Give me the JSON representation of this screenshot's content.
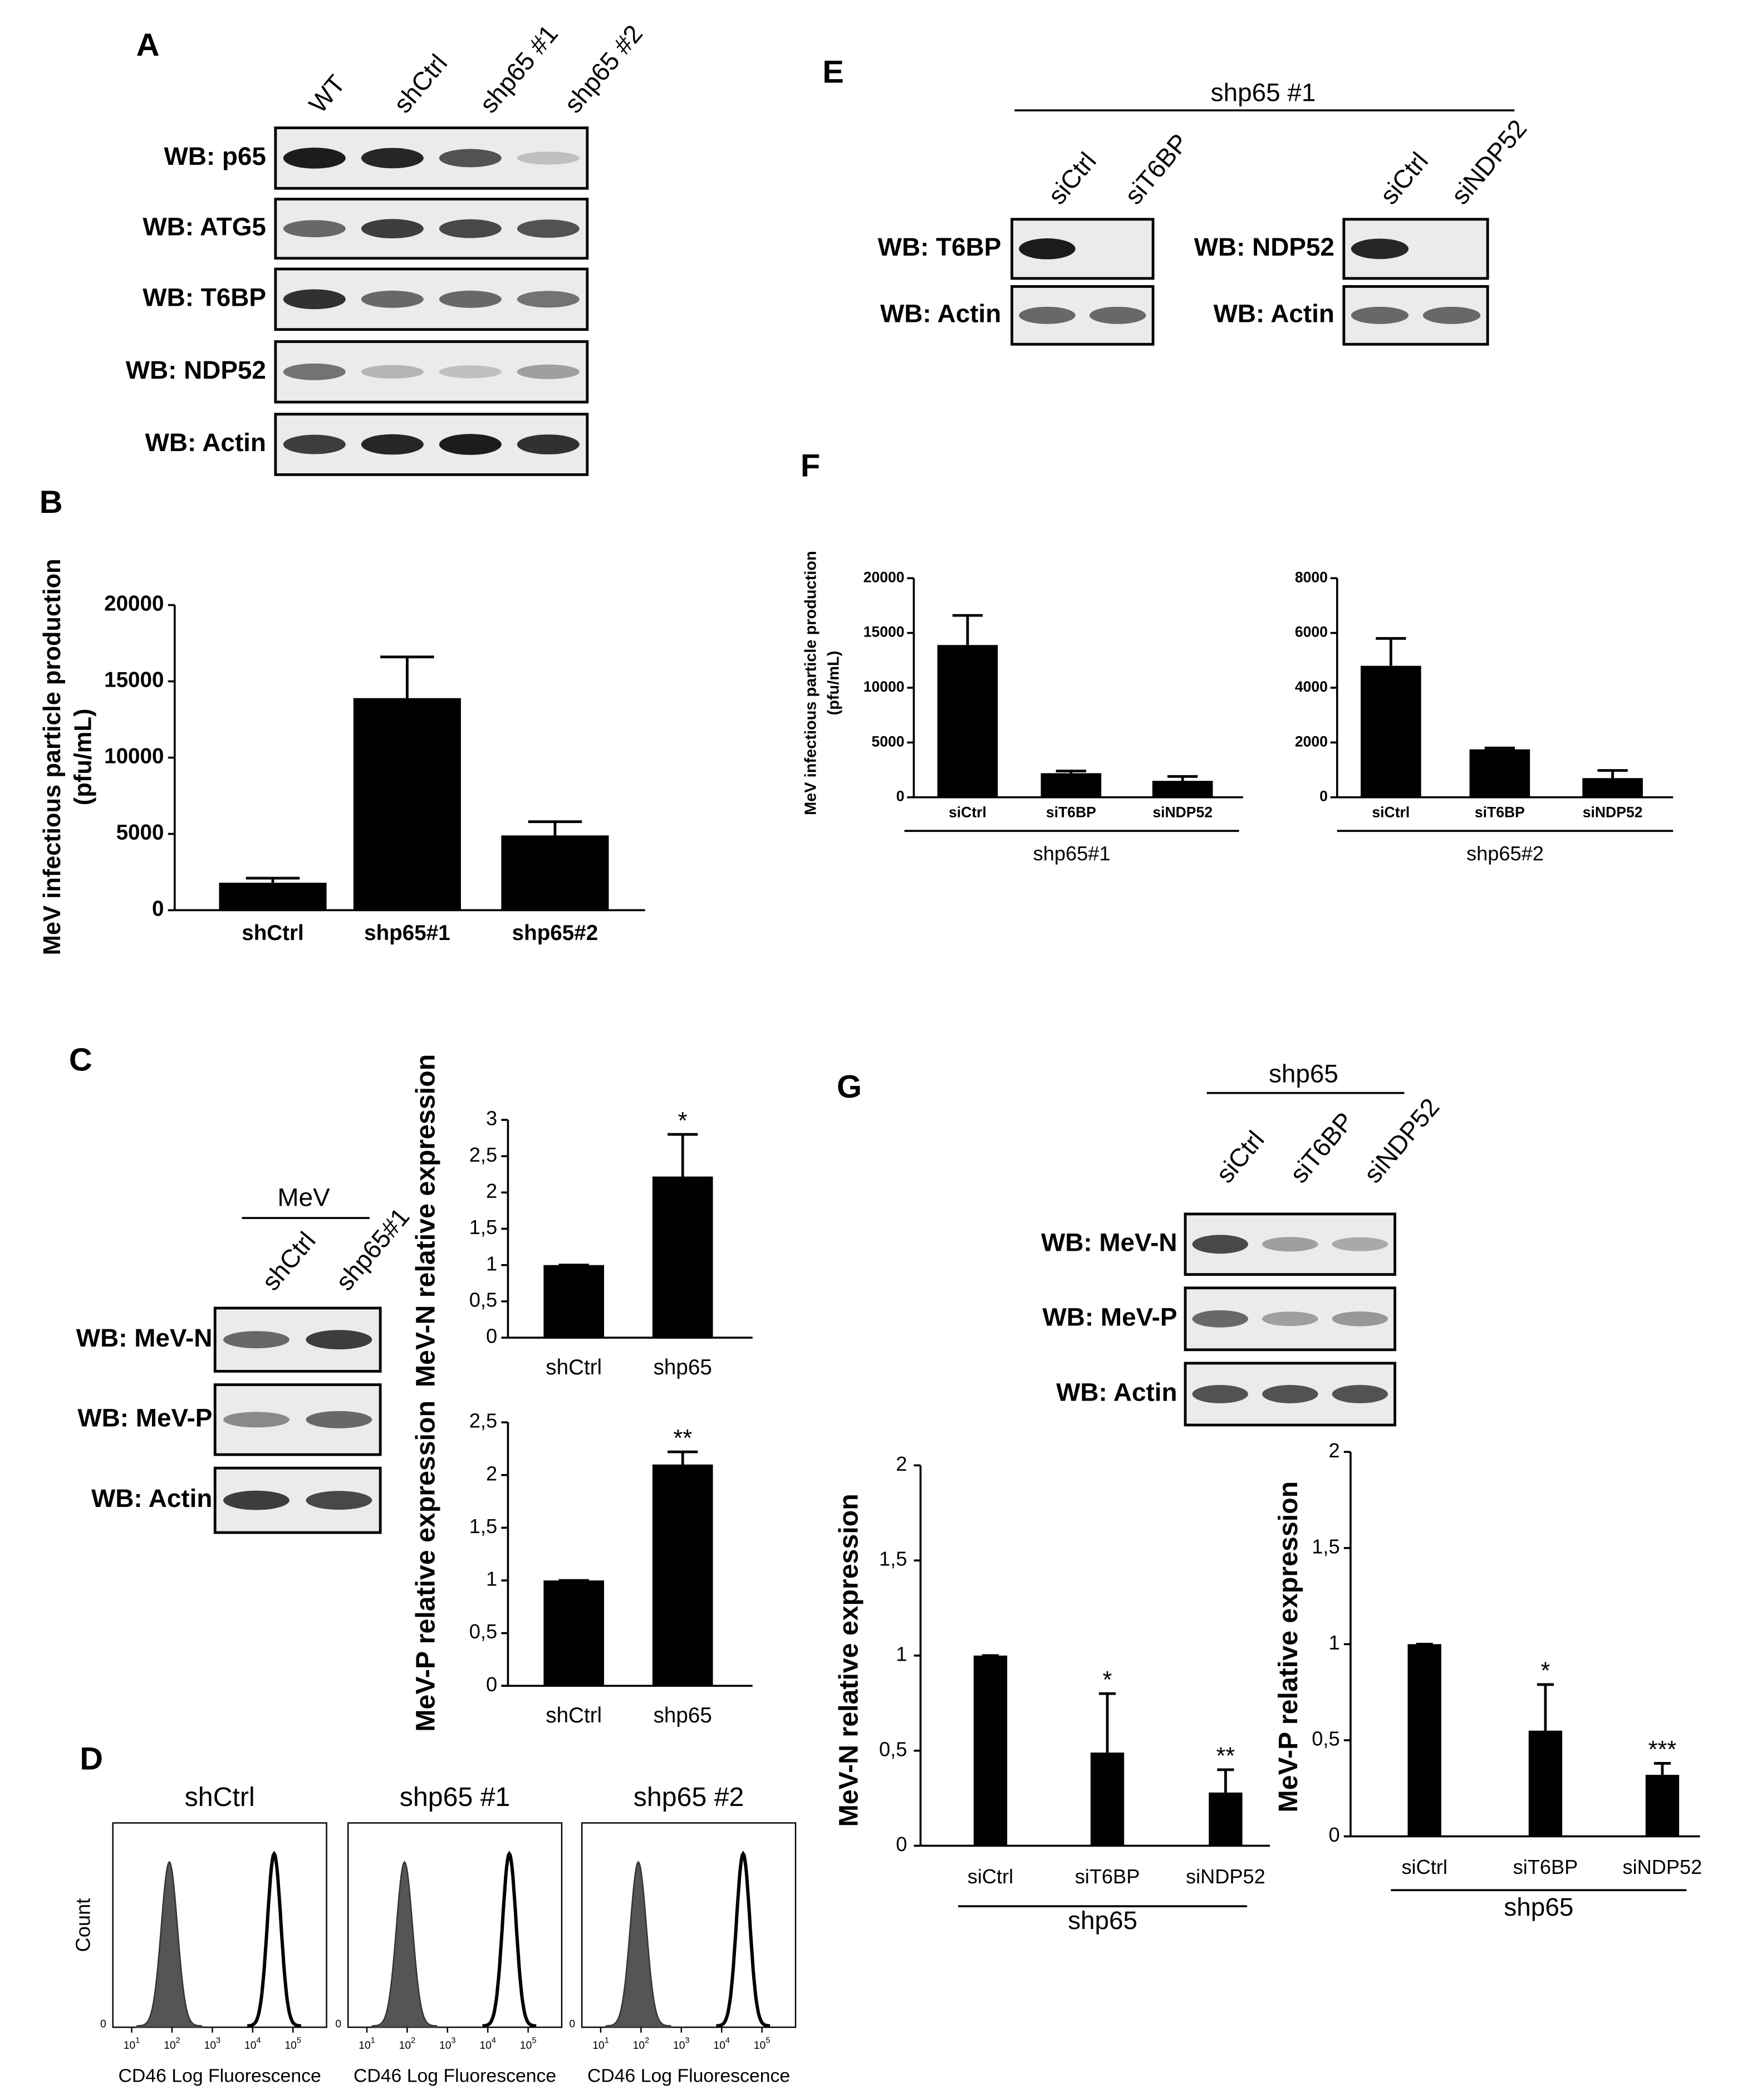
{
  "panel_labels": [
    "A",
    "B",
    "C",
    "D",
    "E",
    "F",
    "G"
  ],
  "blots": [
    {
      "lanes": [
        "WT",
        "shCtrl",
        "shp65 #1",
        "shp65 #2"
      ],
      "rows": [
        "WB: p65",
        "WB: ATG5",
        "WB: T6BP",
        "WB: NDP52",
        "WB: Actin"
      ]
    },
    {
      "header": "shp65 #1",
      "lanes": [
        "siCtrl",
        "siT6BP"
      ],
      "rows": [
        "WB: T6BP",
        "WB: Actin"
      ]
    },
    {
      "lanes": [
        "siCtrl",
        "siNDP52"
      ],
      "rows": [
        "WB: NDP52",
        "WB: Actin"
      ]
    },
    {
      "header": "MeV",
      "lanes": [
        "shCtrl",
        "shp65#1"
      ],
      "rows": [
        "WB: MeV-N",
        "WB: MeV-P",
        "WB: Actin"
      ]
    },
    {
      "header": "shp65",
      "lanes": [
        "siCtrl",
        "siT6BP",
        "siNDP52"
      ],
      "rows": [
        "WB: MeV-N",
        "WB: MeV-P",
        "WB: Actin"
      ]
    }
  ],
  "flow": {
    "titles": [
      "shCtrl",
      "shp65 #1",
      "shp65 #2"
    ],
    "ylabel": "Count",
    "xlabel": "CD46 Log Fluorescence",
    "tick_base": "10",
    "tick_exponents": [
      1,
      2,
      3,
      4,
      5
    ],
    "yticks": [
      0
    ]
  },
  "chart_data": [
    {
      "type": "bar",
      "ylabel": [
        "MeV infectious particle production",
        "(pfu/mL)"
      ],
      "categories": [
        "shCtrl",
        "shp65#1",
        "shp65#2"
      ],
      "values": [
        1800,
        13900,
        4900
      ],
      "errors": [
        300,
        2700,
        900
      ],
      "color": "#000000",
      "ylim": [
        0,
        20000
      ],
      "yticks": [
        0,
        5000,
        10000,
        15000,
        20000
      ]
    },
    {
      "type": "bar",
      "ylabel": [
        "MeV-N relative expression"
      ],
      "categories": [
        "shCtrl",
        "shp65"
      ],
      "values": [
        1,
        2.22
      ],
      "errors": [
        0,
        0.58
      ],
      "annotations": [
        null,
        "*"
      ],
      "color": "#000000",
      "ylim": [
        0,
        3
      ],
      "yticks": [
        0,
        {
          "value": 0.5,
          "label": "0,5"
        },
        1,
        {
          "value": 1.5,
          "label": "1,5"
        },
        2,
        {
          "value": 2.5,
          "label": "2,5"
        },
        3
      ]
    },
    {
      "type": "bar",
      "ylabel": [
        "MeV-P relative expression"
      ],
      "categories": [
        "shCtrl",
        "shp65"
      ],
      "values": [
        1,
        2.1
      ],
      "errors": [
        0,
        0.12
      ],
      "annotations": [
        null,
        "**"
      ],
      "color": "#000000",
      "ylim": [
        0,
        2.5
      ],
      "yticks": [
        0,
        {
          "value": 0.5,
          "label": "0,5"
        },
        1,
        {
          "value": 1.5,
          "label": "1,5"
        },
        2,
        {
          "value": 2.5,
          "label": "2,5"
        }
      ]
    },
    {
      "type": "bar",
      "ylabel": [
        "MeV infectious particle production",
        "(pfu/mL)"
      ],
      "categories": [
        "siCtrl",
        "siT6BP",
        "siNDP52"
      ],
      "values": [
        13900,
        2200,
        1500
      ],
      "errors": [
        2700,
        200,
        400
      ],
      "group": "shp65#1",
      "color": "#000000",
      "ylim": [
        0,
        20000
      ],
      "yticks": [
        0,
        5000,
        10000,
        15000,
        20000
      ]
    },
    {
      "type": "bar",
      "categories": [
        "siCtrl",
        "siT6BP",
        "siNDP52"
      ],
      "values": [
        4800,
        1750,
        700
      ],
      "errors": [
        1000,
        50,
        280
      ],
      "group": "shp65#2",
      "color": "#000000",
      "ylim": [
        0,
        8000
      ],
      "yticks": [
        0,
        2000,
        4000,
        6000,
        8000
      ]
    },
    {
      "type": "bar",
      "ylabel": [
        "MeV-N relative expression"
      ],
      "categories": [
        "siCtrl",
        "siT6BP",
        "siNDP52"
      ],
      "values": [
        1,
        0.49,
        0.28
      ],
      "errors": [
        0,
        0.31,
        0.12
      ],
      "annotations": [
        null,
        "*",
        "**"
      ],
      "group": "shp65",
      "color": "#000000",
      "ylim": [
        0,
        2
      ],
      "yticks": [
        0,
        {
          "value": 0.5,
          "label": "0,5"
        },
        1,
        {
          "value": 1.5,
          "label": "1,5"
        },
        2
      ]
    },
    {
      "type": "bar",
      "ylabel": [
        "MeV-P relative expression"
      ],
      "categories": [
        "siCtrl",
        "siT6BP",
        "siNDP52"
      ],
      "values": [
        1,
        0.55,
        0.32
      ],
      "errors": [
        0,
        0.24,
        0.06
      ],
      "annotations": [
        null,
        "*",
        "***"
      ],
      "group": "shp65",
      "color": "#000000",
      "ylim": [
        0,
        2
      ],
      "yticks": [
        0,
        {
          "value": 0.5,
          "label": "0,5"
        },
        1,
        {
          "value": 1.5,
          "label": "1,5"
        },
        2
      ]
    }
  ]
}
